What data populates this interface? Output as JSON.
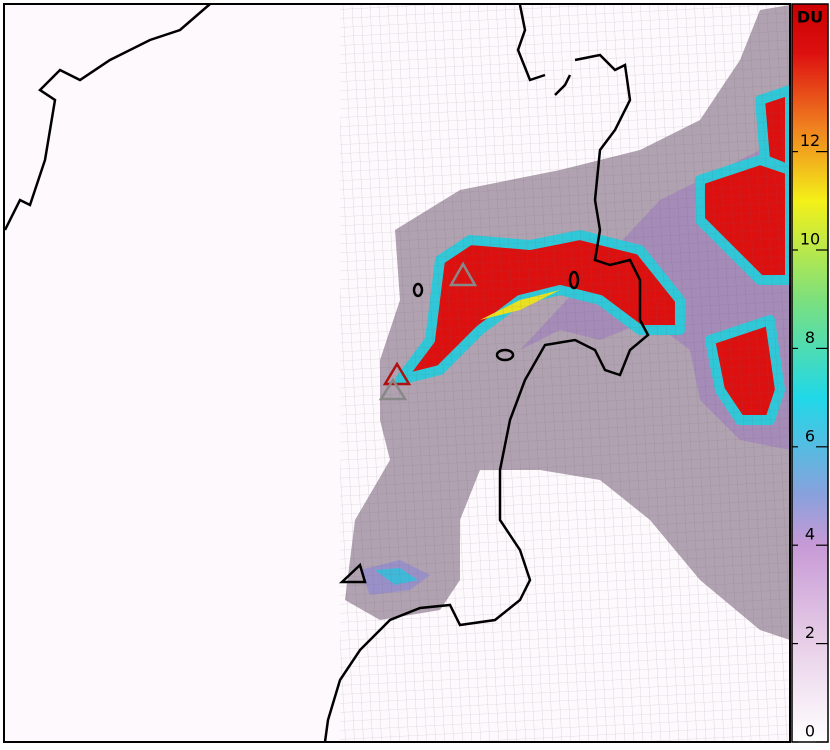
{
  "colorbar": {
    "unit": "DU",
    "lim": [
      0,
      15
    ],
    "ticks": [
      0,
      2,
      4,
      6,
      8,
      10,
      12
    ],
    "stops": [
      {
        "value": 0,
        "color": "#ffffff"
      },
      {
        "value": 2,
        "color": "#e8cfe8"
      },
      {
        "value": 4,
        "color": "#c79ad6"
      },
      {
        "value": 5,
        "color": "#8aa0dc"
      },
      {
        "value": 7,
        "color": "#20d8e8"
      },
      {
        "value": 9,
        "color": "#7de07d"
      },
      {
        "value": 11,
        "color": "#f4f018"
      },
      {
        "value": 12.5,
        "color": "#f08020"
      },
      {
        "value": 14,
        "color": "#dd1010"
      },
      {
        "value": 15,
        "color": "#cc0000"
      }
    ]
  }
}
